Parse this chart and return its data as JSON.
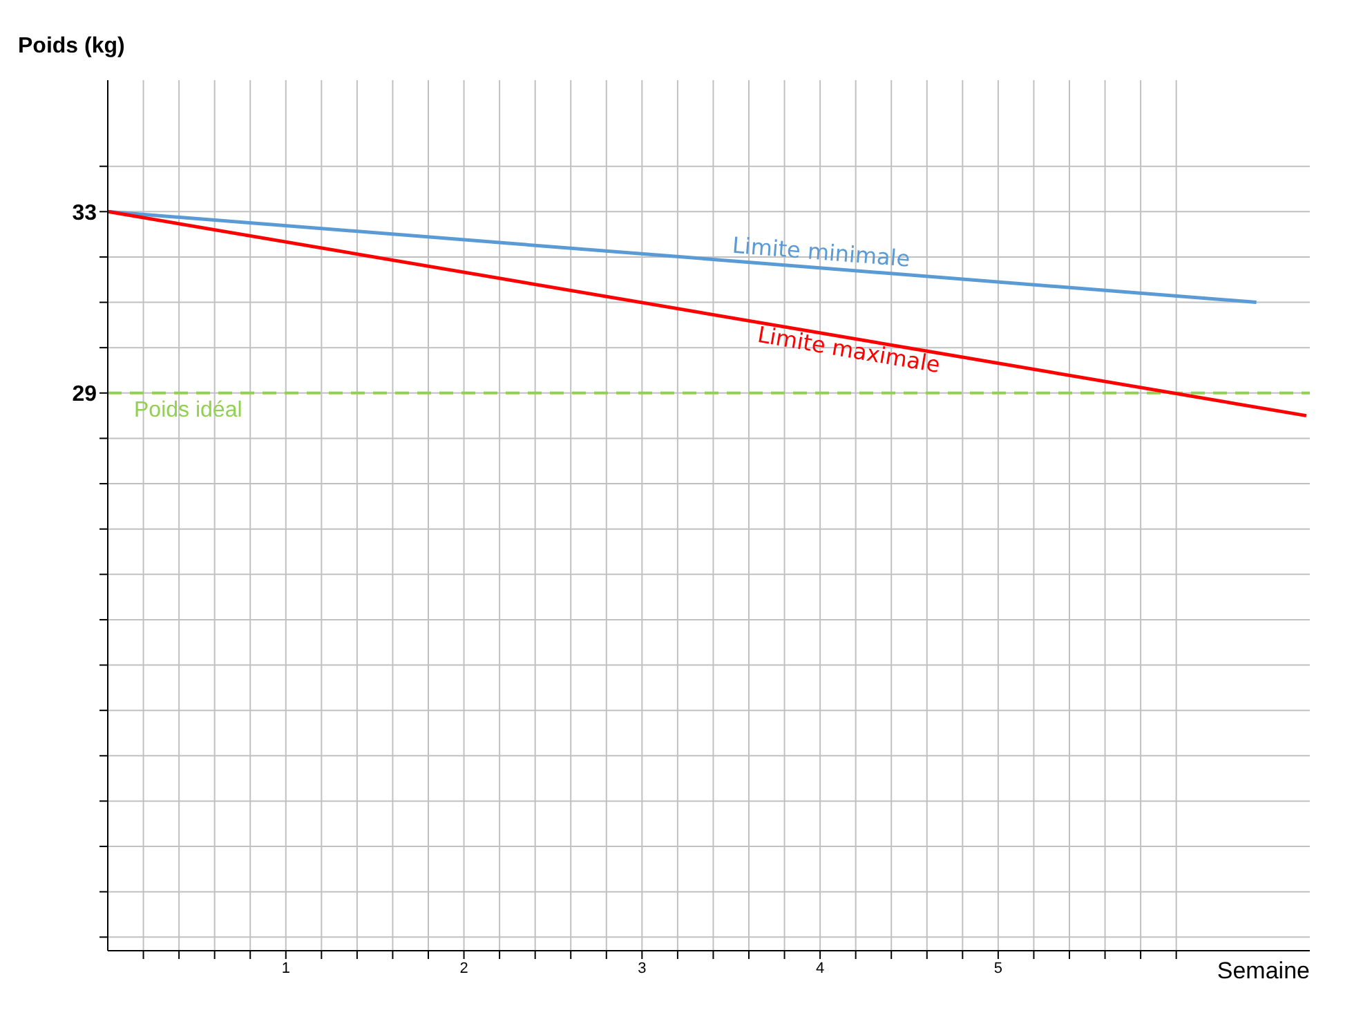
{
  "chart_data": {
    "type": "line",
    "ylabel": "Poids    (kg)",
    "xlabel": "Semaine",
    "xlim": [
      0,
      6.75
    ],
    "ylim": [
      16.7,
      35.9
    ],
    "xticks": [
      {
        "value": 0.2,
        "label": null
      },
      {
        "value": 0.4,
        "label": null
      },
      {
        "value": 0.6,
        "label": null
      },
      {
        "value": 0.8,
        "label": null
      },
      1,
      {
        "value": 1.2,
        "label": null
      },
      {
        "value": 1.4,
        "label": null
      },
      {
        "value": 1.6,
        "label": null
      },
      {
        "value": 1.8,
        "label": null
      },
      2,
      {
        "value": 2.2,
        "label": null
      },
      {
        "value": 2.4,
        "label": null
      },
      {
        "value": 2.6,
        "label": null
      },
      {
        "value": 2.8,
        "label": null
      },
      3,
      {
        "value": 3.2,
        "label": null
      },
      {
        "value": 3.4,
        "label": null
      },
      {
        "value": 3.6,
        "label": null
      },
      {
        "value": 3.8,
        "label": null
      },
      4,
      {
        "value": 4.2,
        "label": null
      },
      {
        "value": 4.4,
        "label": null
      },
      {
        "value": 4.6,
        "label": null
      },
      {
        "value": 4.8,
        "label": null
      },
      5,
      {
        "value": 5.2,
        "label": null
      },
      {
        "value": 5.4,
        "label": null
      },
      {
        "value": 5.6,
        "label": null
      },
      {
        "value": 5.8,
        "label": null
      },
      {
        "value": 6,
        "label": null
      }
    ],
    "yticks": [
      {
        "value": 17,
        "label": null
      },
      {
        "value": 18,
        "label": null
      },
      {
        "value": 19,
        "label": null
      },
      {
        "value": 20,
        "label": null
      },
      {
        "value": 21,
        "label": null
      },
      {
        "value": 22,
        "label": null
      },
      {
        "value": 23,
        "label": null
      },
      {
        "value": 24,
        "label": null
      },
      {
        "value": 25,
        "label": null
      },
      {
        "value": 26,
        "label": null
      },
      {
        "value": 27,
        "label": null
      },
      {
        "value": 28,
        "label": null
      },
      29,
      {
        "value": 30,
        "label": null
      },
      {
        "value": 31,
        "label": null
      },
      {
        "value": 32,
        "label": null
      },
      33,
      {
        "value": 34,
        "label": null
      }
    ],
    "grid": true,
    "line_style": "solid",
    "marker": "none",
    "series": [
      {
        "name": "Limite minimale",
        "color": "#5b9bd5",
        "x": [
          0,
          6.45
        ],
        "values": [
          33,
          31
        ]
      },
      {
        "name": "Limite maximale",
        "color": "#ff0000",
        "x": [
          0,
          6.73
        ],
        "values": [
          33,
          28.5
        ]
      }
    ],
    "ref_lines": [
      {
        "axis": "y",
        "value": 29,
        "label": "Poids idéal",
        "color": "#92d050",
        "line_style": "dashed"
      }
    ]
  }
}
